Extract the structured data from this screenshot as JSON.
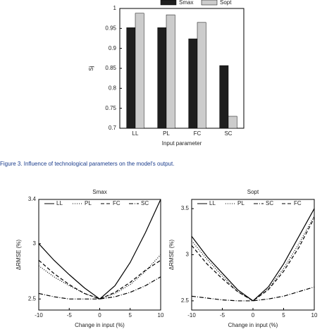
{
  "caption": "Figure 3. Influence of technological parameters on the model's output.",
  "chart_data": [
    {
      "type": "bar",
      "ylabel": "Sj",
      "xlabel": "Input parameter",
      "categories": [
        "LL",
        "PL",
        "FC",
        "SC"
      ],
      "series": [
        {
          "name": "Smax",
          "color": "#1e1e1e",
          "values": [
            0.952,
            0.952,
            0.924,
            0.857
          ]
        },
        {
          "name": "Sopt",
          "color": "#cccccc",
          "values": [
            0.988,
            0.984,
            0.965,
            0.73
          ]
        }
      ],
      "ylim": [
        0.7,
        1
      ],
      "yticks": [
        0.7,
        0.75,
        0.8,
        0.85,
        0.9,
        0.95,
        1
      ]
    },
    {
      "type": "line",
      "title": "Smax",
      "xlabel": "Change in input (%)",
      "ylabel": "ΔRMSE (%)",
      "x": [
        -10,
        -7.5,
        -5,
        -2.5,
        0,
        2.5,
        5,
        7.5,
        10
      ],
      "series": [
        {
          "name": "LL",
          "color": "#000000",
          "dash": "none",
          "values": [
            3.0,
            2.85,
            2.72,
            2.6,
            2.5,
            2.62,
            2.83,
            3.1,
            3.4
          ]
        },
        {
          "name": "PL",
          "color": "#000000",
          "dash": "1 2",
          "values": [
            2.8,
            2.7,
            2.62,
            2.55,
            2.5,
            2.55,
            2.63,
            2.75,
            2.9
          ]
        },
        {
          "name": "FC",
          "color": "#000000",
          "dash": "5 3",
          "values": [
            2.85,
            2.73,
            2.63,
            2.55,
            2.5,
            2.56,
            2.65,
            2.76,
            2.85
          ]
        },
        {
          "name": "SC",
          "color": "#000000",
          "dash": "6 2 1 2",
          "values": [
            2.55,
            2.52,
            2.5,
            2.5,
            2.5,
            2.52,
            2.56,
            2.62,
            2.7
          ]
        }
      ],
      "xlim": [
        -10,
        10
      ],
      "xticks": [
        -10,
        -5,
        0,
        5,
        10
      ],
      "ylim": [
        2.4,
        3.4
      ],
      "yticks": [
        2.5,
        3,
        3.4
      ]
    },
    {
      "type": "line",
      "title": "Sopt",
      "xlabel": "Change in input (%)",
      "ylabel": "ΔRMSE (%)",
      "x": [
        -10,
        -7.5,
        -5,
        -2.5,
        0,
        2.5,
        5,
        7.5,
        10
      ],
      "series": [
        {
          "name": "LL",
          "color": "#000000",
          "dash": "none",
          "values": [
            3.2,
            2.98,
            2.8,
            2.62,
            2.5,
            2.65,
            2.9,
            3.2,
            3.5
          ]
        },
        {
          "name": "PL",
          "color": "#000000",
          "dash": "1 2",
          "values": [
            3.15,
            2.95,
            2.77,
            2.6,
            2.5,
            2.63,
            2.85,
            3.12,
            3.42
          ]
        },
        {
          "name": "SC",
          "color": "#000000",
          "dash": "6 2 1 2",
          "values": [
            2.55,
            2.53,
            2.51,
            2.5,
            2.5,
            2.52,
            2.55,
            2.6,
            2.65
          ]
        },
        {
          "name": "FC",
          "color": "#000000",
          "dash": "5 3",
          "values": [
            3.1,
            2.9,
            2.74,
            2.6,
            2.5,
            2.62,
            2.82,
            3.08,
            3.4
          ]
        }
      ],
      "xlim": [
        -10,
        10
      ],
      "xticks": [
        -10,
        -5,
        0,
        5,
        10
      ],
      "ylim": [
        2.4,
        3.6
      ],
      "yticks": [
        2.5,
        3,
        3.5
      ]
    }
  ]
}
